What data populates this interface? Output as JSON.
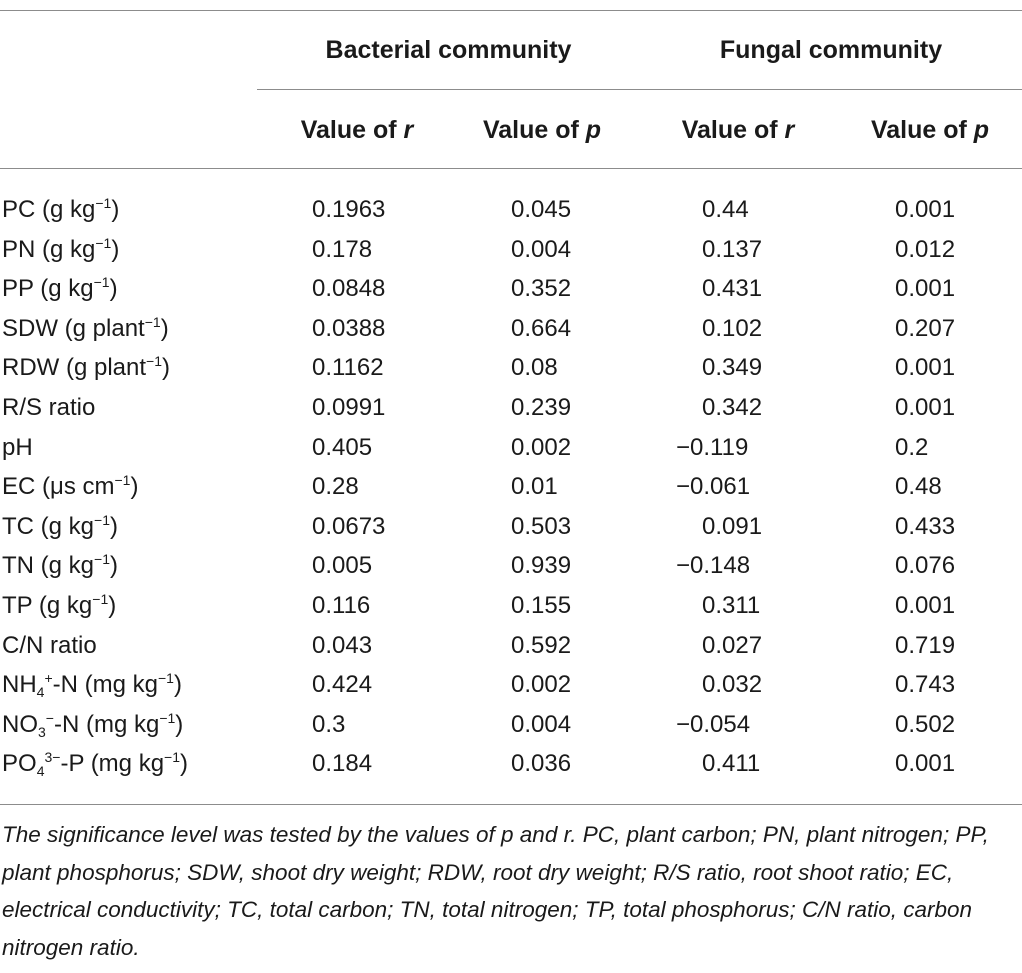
{
  "table": {
    "group_headers": {
      "bacterial": "Bacterial community",
      "fungal": "Fungal community"
    },
    "column_headers": {
      "r_label": "Value of ",
      "r_symbol": "r",
      "p_label": "Value of ",
      "p_symbol": "p"
    },
    "rows": [
      {
        "base": "PC (g kg",
        "sup": "−1",
        "tail": ")",
        "br": "0.1963",
        "bp": "0.045",
        "fr": "0.44",
        "fp": "0.001"
      },
      {
        "base": "PN (g kg",
        "sup": "−1",
        "tail": ")",
        "br": "0.178",
        "bp": "0.004",
        "fr": "0.137",
        "fp": "0.012"
      },
      {
        "base": "PP (g kg",
        "sup": "−1",
        "tail": ")",
        "br": "0.0848",
        "bp": "0.352",
        "fr": "0.431",
        "fp": "0.001"
      },
      {
        "base": "SDW (g plant",
        "sup": "−1",
        "tail": ")",
        "br": "0.0388",
        "bp": "0.664",
        "fr": "0.102",
        "fp": "0.207"
      },
      {
        "base": "RDW (g plant",
        "sup": "−1",
        "tail": ")",
        "br": "0.1162",
        "bp": "0.08",
        "fr": "0.349",
        "fp": "0.001"
      },
      {
        "base": "R/S ratio",
        "sup": "",
        "tail": "",
        "br": "0.0991",
        "bp": "0.239",
        "fr": "0.342",
        "fp": "0.001"
      },
      {
        "base": "pH",
        "sup": "",
        "tail": "",
        "br": "0.405",
        "bp": "0.002",
        "fr": "−0.119",
        "fp": "0.2"
      },
      {
        "base": "EC (μs cm",
        "sup": "−1",
        "tail": ")",
        "br": "0.28",
        "bp": "0.01",
        "fr": "−0.061",
        "fp": "0.48"
      },
      {
        "base": "TC (g kg",
        "sup": "−1",
        "tail": ")",
        "br": "0.0673",
        "bp": "0.503",
        "fr": "0.091",
        "fp": "0.433"
      },
      {
        "base": "TN (g kg",
        "sup": "−1",
        "tail": ")",
        "br": "0.005",
        "bp": "0.939",
        "fr": "−0.148",
        "fp": "0.076"
      },
      {
        "base": "TP (g kg",
        "sup": "−1",
        "tail": ")",
        "br": "0.116",
        "bp": "0.155",
        "fr": "0.311",
        "fp": "0.001"
      },
      {
        "base": "C/N ratio",
        "sup": "",
        "tail": "",
        "br": "0.043",
        "bp": "0.592",
        "fr": "0.027",
        "fp": "0.719"
      },
      {
        "base": "NH",
        "sub": "4",
        "sup2": "+",
        "mid": "-N (mg kg",
        "sup": "−1",
        "tail": ")",
        "br": "0.424",
        "bp": "0.002",
        "fr": "0.032",
        "fp": "0.743"
      },
      {
        "base": "NO",
        "sub": "3",
        "sup2": "−",
        "mid": "-N (mg kg",
        "sup": "−1",
        "tail": ")",
        "br": "0.3",
        "bp": "0.004",
        "fr": "−0.054",
        "fp": "0.502"
      },
      {
        "base": "PO",
        "sub": "4",
        "sup2": "3−",
        "mid": "-P (mg kg",
        "sup": "−1",
        "tail": ")",
        "br": "0.184",
        "bp": "0.036",
        "fr": "0.411",
        "fp": "0.001"
      }
    ],
    "footnote": "The significance level was tested by the values of p and r. PC, plant carbon; PN, plant nitrogen; PP, plant phosphorus; SDW, shoot dry weight; RDW, root dry weight; R/S ratio, root shoot ratio; EC, electrical conductivity; TC, total carbon; TN, total nitrogen; TP, total phosphorus; C/N ratio, carbon nitrogen ratio."
  }
}
